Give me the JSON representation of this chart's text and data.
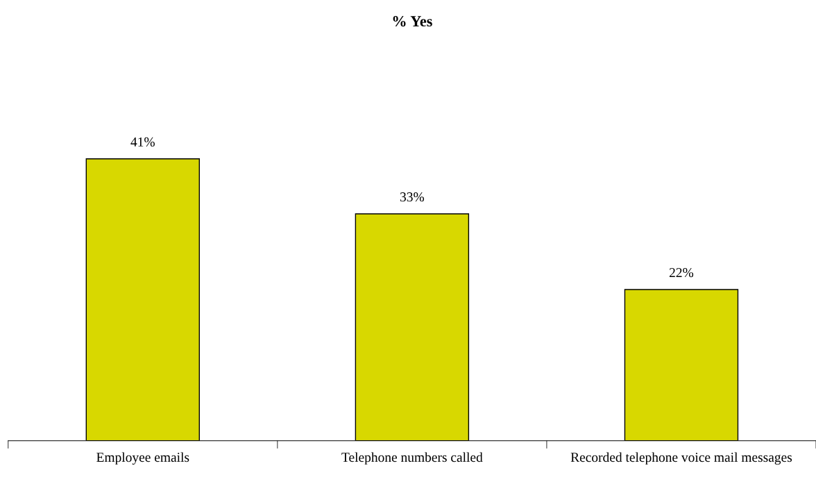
{
  "chart_data": {
    "type": "bar",
    "title": "% Yes",
    "categories": [
      "Employee emails",
      "Telephone numbers called",
      "Recorded telephone voice mail messages"
    ],
    "values": [
      41,
      33,
      22
    ],
    "value_labels": [
      "41%",
      "33%",
      "22%"
    ],
    "color": "#d8d800",
    "grid": false,
    "legend": false,
    "tick_labels": "x"
  }
}
